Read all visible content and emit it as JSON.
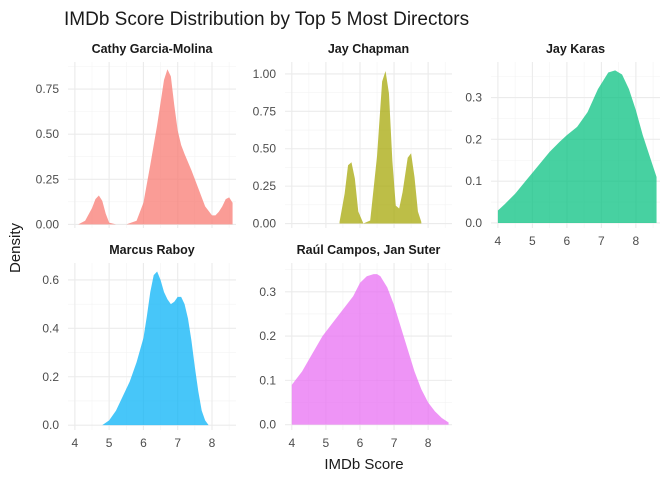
{
  "chart_data": {
    "type": "area",
    "title": "IMDb Score Distribution by Top 5 Most Directors",
    "xlabel": "IMDb Score",
    "ylabel": "Density",
    "grid": true,
    "legend": "none",
    "panels": [
      {
        "name": "Cathy Garcia-Molina",
        "color": "#F8766D",
        "xlim": [
          3.8,
          8.7
        ],
        "ylim": [
          -0.02,
          0.9
        ],
        "xticks": [],
        "yticks": [
          0.0,
          0.25,
          0.5,
          0.75
        ],
        "ytick_labels": [
          "0.00",
          "0.25",
          "0.50",
          "0.75"
        ],
        "x": [
          4.1,
          4.3,
          4.5,
          4.6,
          4.7,
          4.8,
          4.9,
          5.0,
          5.2,
          5.5,
          5.8,
          6.0,
          6.2,
          6.4,
          6.6,
          6.7,
          6.8,
          6.9,
          7.0,
          7.1,
          7.2,
          7.4,
          7.6,
          7.8,
          8.0,
          8.1,
          8.2,
          8.3,
          8.4,
          8.5,
          8.6
        ],
        "y": [
          0.0,
          0.02,
          0.09,
          0.14,
          0.16,
          0.13,
          0.06,
          0.01,
          0.0,
          0.0,
          0.02,
          0.12,
          0.33,
          0.55,
          0.8,
          0.86,
          0.82,
          0.66,
          0.52,
          0.44,
          0.39,
          0.3,
          0.2,
          0.1,
          0.05,
          0.05,
          0.07,
          0.1,
          0.14,
          0.15,
          0.12
        ]
      },
      {
        "name": "Jay Chapman",
        "color": "#A3A500",
        "xlim": [
          3.8,
          8.7
        ],
        "ylim": [
          -0.03,
          1.08
        ],
        "xticks": [],
        "yticks": [
          0.0,
          0.25,
          0.5,
          0.75,
          1.0
        ],
        "ytick_labels": [
          "0.00",
          "0.25",
          "0.50",
          "0.75",
          "1.00"
        ],
        "x": [
          5.4,
          5.55,
          5.65,
          5.75,
          5.85,
          5.95,
          6.1,
          6.3,
          6.5,
          6.65,
          6.75,
          6.85,
          6.95,
          7.05,
          7.15,
          7.25,
          7.4,
          7.5,
          7.6,
          7.7,
          7.8
        ],
        "y": [
          0.01,
          0.2,
          0.39,
          0.41,
          0.3,
          0.08,
          0.0,
          0.02,
          0.45,
          0.95,
          1.02,
          0.87,
          0.42,
          0.12,
          0.1,
          0.21,
          0.44,
          0.47,
          0.31,
          0.08,
          0.01
        ]
      },
      {
        "name": "Jay Karas",
        "color": "#00BF7D",
        "xlim": [
          3.8,
          8.7
        ],
        "ylim": [
          -0.012,
          0.385
        ],
        "xticks": [
          4,
          5,
          6,
          7,
          8
        ],
        "yticks": [
          0.0,
          0.1,
          0.2,
          0.3
        ],
        "ytick_labels": [
          "0.0",
          "0.1",
          "0.2",
          "0.3"
        ],
        "x": [
          4.0,
          4.2,
          4.5,
          4.8,
          5.1,
          5.5,
          5.8,
          6.0,
          6.3,
          6.6,
          6.9,
          7.2,
          7.4,
          7.6,
          7.8,
          8.0,
          8.2,
          8.4,
          8.6
        ],
        "y": [
          0.03,
          0.045,
          0.07,
          0.1,
          0.13,
          0.17,
          0.195,
          0.21,
          0.23,
          0.265,
          0.32,
          0.36,
          0.365,
          0.355,
          0.32,
          0.27,
          0.21,
          0.16,
          0.11
        ]
      },
      {
        "name": "Marcus Raboy",
        "color": "#00B0F6",
        "xlim": [
          3.8,
          8.7
        ],
        "ylim": [
          -0.02,
          0.67
        ],
        "xticks": [
          4,
          5,
          6,
          7,
          8
        ],
        "yticks": [
          0.0,
          0.2,
          0.4,
          0.6
        ],
        "ytick_labels": [
          "0.0",
          "0.2",
          "0.4",
          "0.6"
        ],
        "x": [
          4.8,
          5.0,
          5.2,
          5.4,
          5.6,
          5.8,
          6.0,
          6.1,
          6.2,
          6.3,
          6.4,
          6.5,
          6.6,
          6.7,
          6.8,
          6.9,
          7.0,
          7.1,
          7.2,
          7.3,
          7.4,
          7.5,
          7.6,
          7.7,
          7.8,
          7.9
        ],
        "y": [
          0.0,
          0.02,
          0.06,
          0.12,
          0.18,
          0.26,
          0.36,
          0.45,
          0.55,
          0.62,
          0.635,
          0.6,
          0.55,
          0.52,
          0.5,
          0.51,
          0.53,
          0.53,
          0.5,
          0.44,
          0.35,
          0.24,
          0.14,
          0.06,
          0.02,
          0.0
        ]
      },
      {
        "name": "Raúl Campos, Jan Suter",
        "color": "#E76BF3",
        "xlim": [
          3.8,
          8.7
        ],
        "ylim": [
          -0.012,
          0.365
        ],
        "xticks": [
          4,
          5,
          6,
          7,
          8
        ],
        "yticks": [
          0.0,
          0.1,
          0.2,
          0.3
        ],
        "ytick_labels": [
          "0.0",
          "0.1",
          "0.2",
          "0.3"
        ],
        "x": [
          4.0,
          4.3,
          4.6,
          4.9,
          5.2,
          5.5,
          5.8,
          6.0,
          6.2,
          6.4,
          6.5,
          6.6,
          6.8,
          7.0,
          7.2,
          7.4,
          7.6,
          7.8,
          8.0,
          8.2,
          8.4,
          8.6
        ],
        "y": [
          0.09,
          0.12,
          0.16,
          0.2,
          0.23,
          0.26,
          0.29,
          0.32,
          0.335,
          0.34,
          0.34,
          0.335,
          0.31,
          0.27,
          0.22,
          0.17,
          0.12,
          0.08,
          0.05,
          0.03,
          0.015,
          0.005
        ]
      }
    ]
  }
}
